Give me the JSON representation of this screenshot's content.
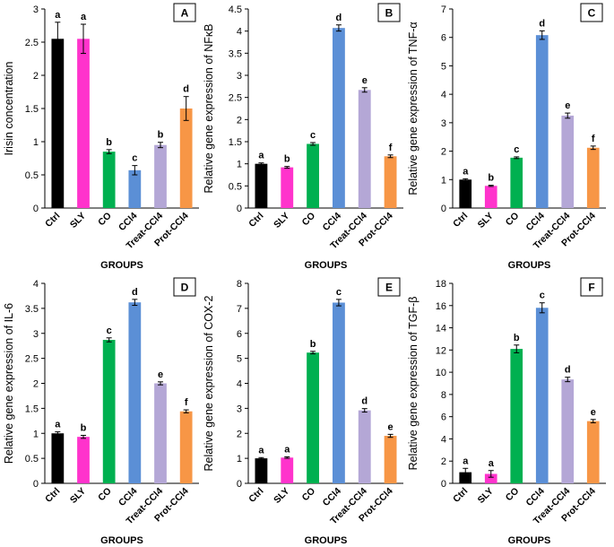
{
  "chart_data": [
    {
      "type": "bar",
      "panel": "A",
      "categories": [
        "Ctrl",
        "SLY",
        "CO",
        "CCl4",
        "Treat-CCl4",
        "Prot-CCl4"
      ],
      "values": [
        2.55,
        2.55,
        0.85,
        0.57,
        0.95,
        1.5
      ],
      "errors": [
        0.25,
        0.22,
        0.03,
        0.07,
        0.04,
        0.18
      ],
      "letters": [
        "a",
        "a",
        "b",
        "c",
        "b",
        "d"
      ],
      "ylabel": "Irisin concentration",
      "xlabel": "GROUPS",
      "ylim": [
        0,
        3
      ],
      "yticks": [
        "0",
        "0.5",
        "1",
        "1.5",
        "2",
        "2.5",
        "3"
      ]
    },
    {
      "type": "bar",
      "panel": "B",
      "categories": [
        "Ctrl",
        "SLY",
        "CO",
        "CCl4",
        "Treat-CCl4",
        "Prot-CCl4"
      ],
      "values": [
        1.0,
        0.92,
        1.45,
        4.07,
        2.67,
        1.17
      ],
      "errors": [
        0.02,
        0.02,
        0.03,
        0.07,
        0.05,
        0.03
      ],
      "letters": [
        "a",
        "b",
        "c",
        "d",
        "e",
        "f"
      ],
      "ylabel": "Relative gene expression of NFκB",
      "xlabel": "GROUPS",
      "ylim": [
        0,
        4.5
      ],
      "yticks": [
        "0",
        "0.5",
        "1",
        "1.5",
        "2",
        "2.5",
        "3",
        "3.5",
        "4",
        "4.5"
      ]
    },
    {
      "type": "bar",
      "panel": "C",
      "categories": [
        "Ctrl",
        "SLY",
        "CO",
        "CCl4",
        "Treat-CCl4",
        "Prot-CCl4"
      ],
      "values": [
        1.0,
        0.78,
        1.77,
        6.08,
        3.25,
        2.12
      ],
      "errors": [
        0.03,
        0.02,
        0.03,
        0.15,
        0.09,
        0.06
      ],
      "letters": [
        "a",
        "b",
        "c",
        "d",
        "e",
        "f"
      ],
      "ylabel": "Relative gene expression of TNF-α",
      "xlabel": "GROUPS",
      "ylim": [
        0,
        7
      ],
      "yticks": [
        "0",
        "1",
        "2",
        "3",
        "4",
        "5",
        "6",
        "7"
      ]
    },
    {
      "type": "bar",
      "panel": "D",
      "categories": [
        "Ctrl",
        "SLY",
        "CO",
        "CCl4",
        "Treat-CCl4",
        "Prot-CCl4"
      ],
      "values": [
        1.0,
        0.93,
        2.87,
        3.62,
        2.0,
        1.44
      ],
      "errors": [
        0.03,
        0.03,
        0.04,
        0.06,
        0.03,
        0.03
      ],
      "letters": [
        "a",
        "b",
        "c",
        "d",
        "e",
        "f"
      ],
      "ylabel": "Relative gene expression of IL-6",
      "xlabel": "GROUPS",
      "ylim": [
        0,
        4
      ],
      "yticks": [
        "0",
        "0.5",
        "1",
        "1.5",
        "2",
        "2.5",
        "3",
        "3.5",
        "4"
      ]
    },
    {
      "type": "bar",
      "panel": "E",
      "categories": [
        "Ctrl",
        "SLY",
        "CO",
        "CCl4",
        "Treat-CCl4",
        "Prot-CCl4"
      ],
      "values": [
        1.0,
        1.03,
        5.23,
        7.23,
        2.92,
        1.9
      ],
      "errors": [
        0.03,
        0.03,
        0.05,
        0.13,
        0.07,
        0.06
      ],
      "letters": [
        "a",
        "a",
        "b",
        "c",
        "d",
        "e"
      ],
      "ylabel": "Relative gene expression of COX-2",
      "xlabel": "GROUPS",
      "ylim": [
        0,
        8
      ],
      "yticks": [
        "0",
        "1",
        "2",
        "3",
        "4",
        "5",
        "6",
        "7",
        "8"
      ]
    },
    {
      "type": "bar",
      "panel": "F",
      "categories": [
        "Ctrl",
        "SLY",
        "CO",
        "CCl4",
        "Treat-CCl4",
        "Prot-CCl4"
      ],
      "values": [
        1.0,
        0.85,
        12.1,
        15.8,
        9.35,
        5.6
      ],
      "errors": [
        0.35,
        0.3,
        0.35,
        0.45,
        0.2,
        0.15
      ],
      "letters": [
        "a",
        "a",
        "b",
        "c",
        "d",
        "e"
      ],
      "ylabel": "Relative gene expression of TGF-β",
      "xlabel": "GROUPS",
      "ylim": [
        0,
        18
      ],
      "yticks": [
        "0",
        "2",
        "4",
        "6",
        "8",
        "10",
        "12",
        "14",
        "16",
        "18"
      ]
    }
  ],
  "colors": {
    "Ctrl": "#000000",
    "SLY": "#ff33cc",
    "CO": "#00b050",
    "CCl4": "#5b8fd6",
    "Treat-CCl4": "#b4a7d6",
    "Prot-CCl4": "#f79646"
  }
}
